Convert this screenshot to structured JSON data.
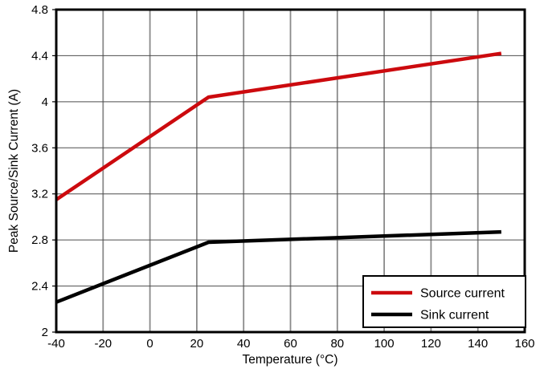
{
  "page": {
    "background": "#ffffff"
  },
  "chart_data": {
    "type": "line",
    "title": "",
    "xlabel": "Temperature (°C)",
    "ylabel": "Peak Source/Sink Current (A)",
    "xlim": [
      -40,
      160
    ],
    "ylim": [
      2,
      4.8
    ],
    "xticks": [
      -40,
      -20,
      0,
      20,
      40,
      60,
      80,
      100,
      120,
      140,
      160
    ],
    "yticks": [
      2,
      2.4,
      2.8,
      3.2,
      3.6,
      4,
      4.4,
      4.8
    ],
    "grid": true,
    "grid_color_vertical": "#8a8a8a",
    "grid_color_horizontal": "#4d4d4d",
    "border_color": "#000000",
    "line_width": 4.5,
    "legend_position": "lower right",
    "series": [
      {
        "name": "Source current",
        "color": "#CC0A0E",
        "x": [
          -40,
          25,
          150
        ],
        "y": [
          3.15,
          4.04,
          4.42
        ]
      },
      {
        "name": "Sink current",
        "color": "#000000",
        "x": [
          -40,
          25,
          150
        ],
        "y": [
          2.26,
          2.78,
          2.87
        ]
      }
    ]
  }
}
